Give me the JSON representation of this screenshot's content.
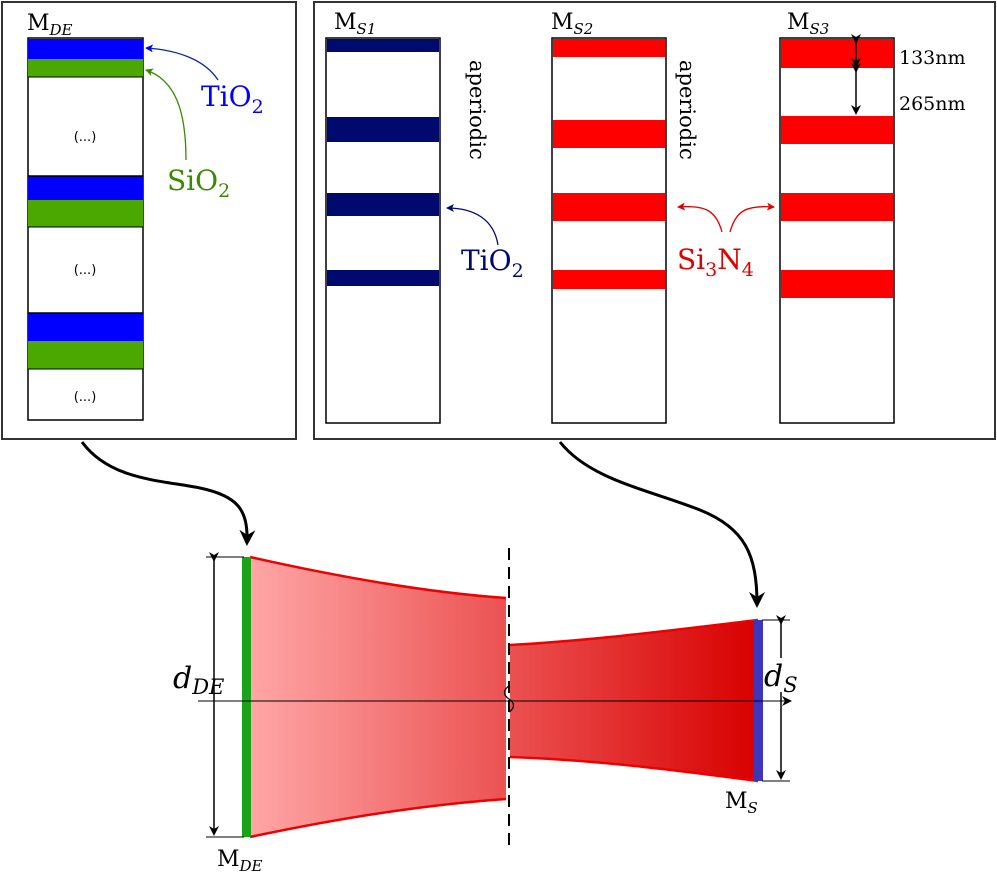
{
  "colors": {
    "tio2_blue": "#0000ff",
    "sio2_green": "#4aa800",
    "tio2_navy": "#000a6e",
    "si3n4_red": "#ff0000",
    "beam_light": "#ffa6a6",
    "beam_dark": "#d80000",
    "mirror_green": "#1aa31a",
    "mirror_blue": "#3f35bb",
    "panel_border": "#333333"
  },
  "labels": {
    "mde_panel_title": {
      "main": "M",
      "sub": "DE"
    },
    "tio2_blue": {
      "main": "TiO",
      "sub": "2"
    },
    "sio2_green": {
      "main": "SiO",
      "sub": "2"
    },
    "ellipsis": "(...)",
    "ms1_title": {
      "main": "M",
      "sub": "S1"
    },
    "ms2_title": {
      "main": "M",
      "sub": "S2"
    },
    "ms3_title": {
      "main": "M",
      "sub": "S3"
    },
    "aperiodic": "aperiodic",
    "tio2_navy": {
      "main": "TiO",
      "sub": "2"
    },
    "si3n4": {
      "a": "Si",
      "s1": "3",
      "b": "N",
      "s2": "4"
    },
    "dim_133": "133nm",
    "dim_265": "265nm",
    "d_de": {
      "main": "d",
      "sub": "DE"
    },
    "d_s": {
      "main": "d",
      "sub": "S"
    },
    "mirror_de": {
      "main": "M",
      "sub": "DE"
    },
    "mirror_s": {
      "main": "M",
      "sub": "S"
    }
  }
}
